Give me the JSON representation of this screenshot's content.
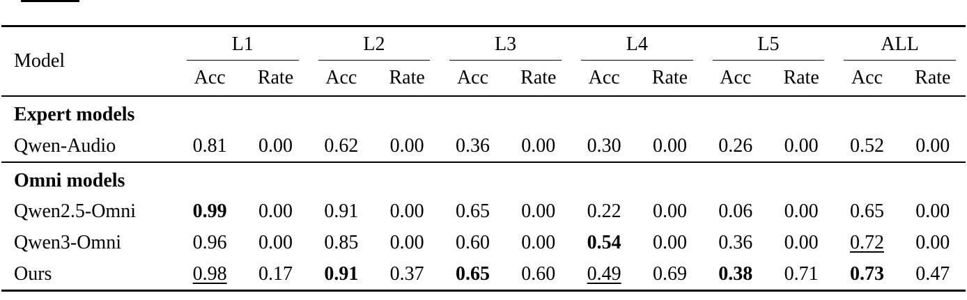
{
  "artifact": {
    "note": "cropped-black-line-top-left"
  },
  "table": {
    "header": {
      "model_label": "Model",
      "groups": [
        {
          "label": "L1"
        },
        {
          "label": "L2"
        },
        {
          "label": "L3"
        },
        {
          "label": "L4"
        },
        {
          "label": "L5"
        },
        {
          "label": "ALL"
        }
      ],
      "subcolumns": [
        "Acc",
        "Rate"
      ]
    },
    "sections": [
      {
        "title": "Expert models",
        "rows": [
          {
            "model": "Qwen-Audio",
            "values": [
              {
                "text": "0.81",
                "style": "normal"
              },
              {
                "text": "0.00",
                "style": "normal"
              },
              {
                "text": "0.62",
                "style": "normal"
              },
              {
                "text": "0.00",
                "style": "normal"
              },
              {
                "text": "0.36",
                "style": "normal"
              },
              {
                "text": "0.00",
                "style": "normal"
              },
              {
                "text": "0.30",
                "style": "normal"
              },
              {
                "text": "0.00",
                "style": "normal"
              },
              {
                "text": "0.26",
                "style": "normal"
              },
              {
                "text": "0.00",
                "style": "normal"
              },
              {
                "text": "0.52",
                "style": "normal"
              },
              {
                "text": "0.00",
                "style": "normal"
              }
            ]
          }
        ]
      },
      {
        "title": "Omni models",
        "rows": [
          {
            "model": "Qwen2.5-Omni",
            "values": [
              {
                "text": "0.99",
                "style": "bold"
              },
              {
                "text": "0.00",
                "style": "normal"
              },
              {
                "text": "0.91",
                "style": "normal"
              },
              {
                "text": "0.00",
                "style": "normal"
              },
              {
                "text": "0.65",
                "style": "normal"
              },
              {
                "text": "0.00",
                "style": "normal"
              },
              {
                "text": "0.22",
                "style": "normal"
              },
              {
                "text": "0.00",
                "style": "normal"
              },
              {
                "text": "0.06",
                "style": "normal"
              },
              {
                "text": "0.00",
                "style": "normal"
              },
              {
                "text": "0.65",
                "style": "normal"
              },
              {
                "text": "0.00",
                "style": "normal"
              }
            ]
          },
          {
            "model": "Qwen3-Omni",
            "values": [
              {
                "text": "0.96",
                "style": "normal"
              },
              {
                "text": "0.00",
                "style": "normal"
              },
              {
                "text": "0.85",
                "style": "normal"
              },
              {
                "text": "0.00",
                "style": "normal"
              },
              {
                "text": "0.60",
                "style": "normal"
              },
              {
                "text": "0.00",
                "style": "normal"
              },
              {
                "text": "0.54",
                "style": "bold"
              },
              {
                "text": "0.00",
                "style": "normal"
              },
              {
                "text": "0.36",
                "style": "normal"
              },
              {
                "text": "0.00",
                "style": "normal"
              },
              {
                "text": "0.72",
                "style": "underline"
              },
              {
                "text": "0.00",
                "style": "normal"
              }
            ]
          },
          {
            "model": "Ours",
            "values": [
              {
                "text": "0.98",
                "style": "underline"
              },
              {
                "text": "0.17",
                "style": "normal"
              },
              {
                "text": "0.91",
                "style": "bold"
              },
              {
                "text": "0.37",
                "style": "normal"
              },
              {
                "text": "0.65",
                "style": "bold"
              },
              {
                "text": "0.60",
                "style": "normal"
              },
              {
                "text": "0.49",
                "style": "underline"
              },
              {
                "text": "0.69",
                "style": "normal"
              },
              {
                "text": "0.38",
                "style": "bold"
              },
              {
                "text": "0.71",
                "style": "normal"
              },
              {
                "text": "0.73",
                "style": "bold"
              },
              {
                "text": "0.47",
                "style": "normal"
              }
            ]
          }
        ]
      }
    ]
  }
}
